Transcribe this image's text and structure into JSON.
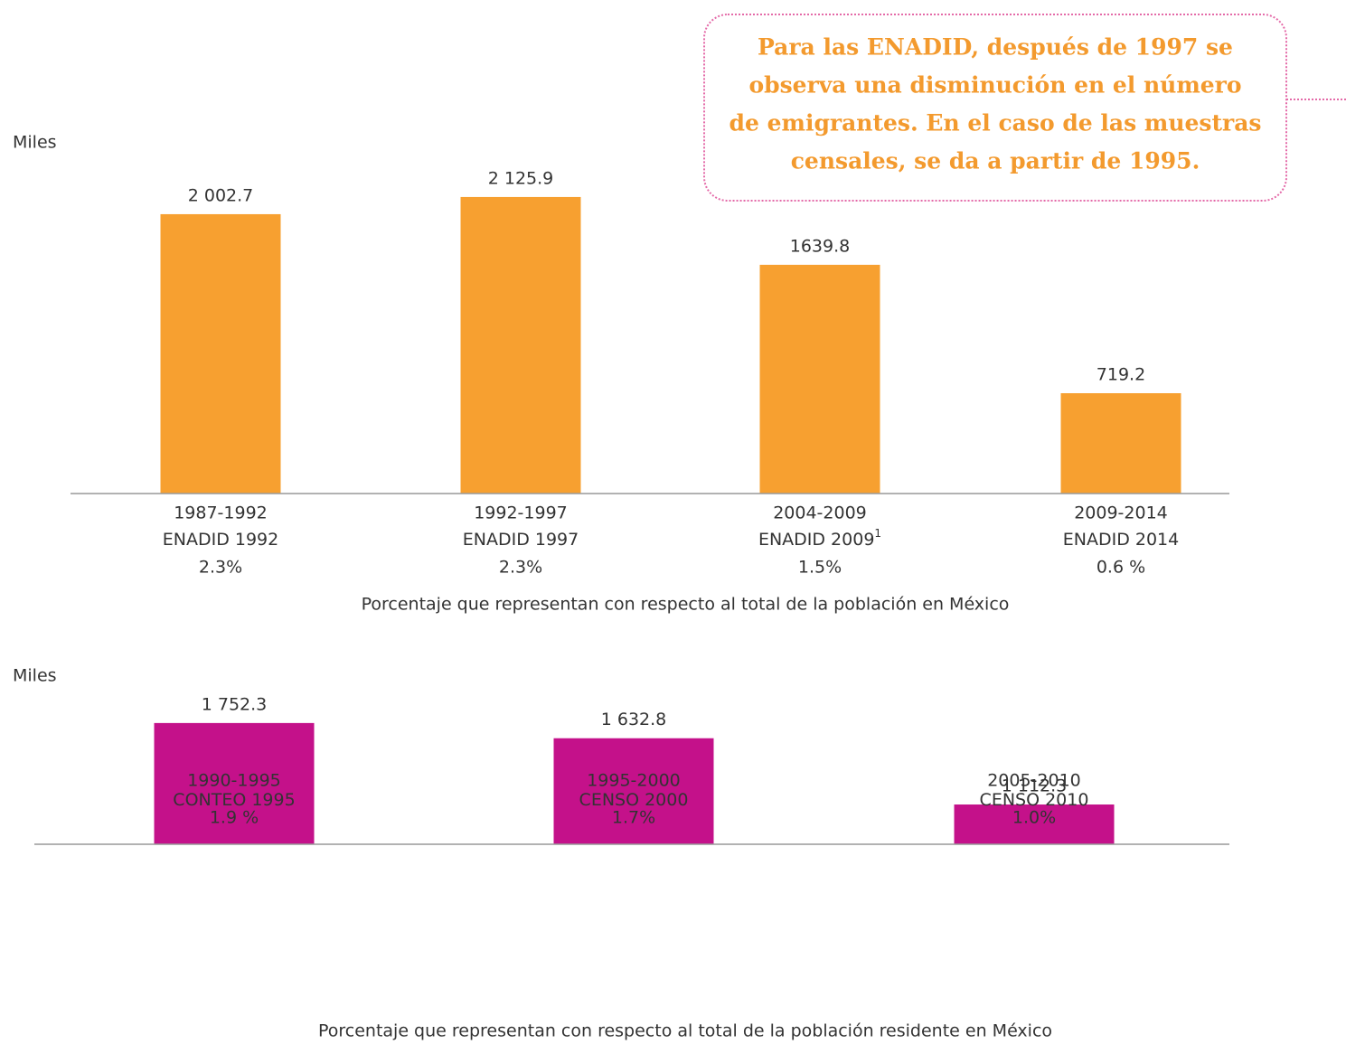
{
  "chart_data": [
    {
      "type": "bar",
      "y_label": "Miles",
      "categories": [
        "1987-1992",
        "1992-1997",
        "2004-2009",
        "2009-2014"
      ],
      "sources": [
        "ENADID 1992",
        "ENADID 1997",
        "ENADID 2009",
        "ENADID 2014"
      ],
      "source_notes": [
        null,
        null,
        "1",
        null
      ],
      "shares": [
        "2.3%",
        "2.3%",
        "1.5%",
        "0.6 %"
      ],
      "values": [
        2002.7,
        2125.9,
        1639.8,
        719.2
      ],
      "value_labels": [
        "2 002.7",
        "2 125.9",
        "1639.8",
        "719.2"
      ],
      "color": "#f7a030",
      "ylim": [
        0,
        2200
      ],
      "caption": "Porcentaje que representan con respecto al total de la población en México"
    },
    {
      "type": "bar",
      "y_label": "Miles",
      "categories": [
        "1990-1995",
        "1995-2000",
        "2005-2010"
      ],
      "sources": [
        "CONTEO 1995",
        "CENSO 2000",
        "CENSO 2010"
      ],
      "source_notes": [
        null,
        null,
        null
      ],
      "shares": [
        "1.9 %",
        "1.7%",
        "1.0%"
      ],
      "values": [
        1752.3,
        1632.8,
        1112.3
      ],
      "value_labels": [
        "1 752.3",
        "1 632.8",
        "1 112.3"
      ],
      "color": "#c4118a",
      "ylim": [
        800,
        2000
      ],
      "caption": "Porcentaje que representan con respecto al total de la población residente en México"
    }
  ],
  "annotation": {
    "lines": [
      "Para las ENADID, después de 1997 se",
      "observa una disminución en el número",
      "de emigrantes. En el caso de las muestras",
      "censales, se da a partir de 1995."
    ]
  }
}
